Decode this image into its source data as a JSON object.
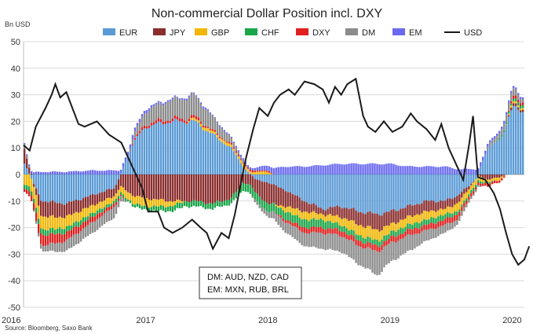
{
  "chart_data": {
    "type": "bar",
    "stacked": true,
    "title": "Non-commercial Dollar Position incl. DXY",
    "ylabel": "Bn USD",
    "ylim": [
      -50,
      50
    ],
    "yticks": [
      "50",
      "40",
      "30",
      "20",
      "10",
      "0",
      "-10",
      "-20",
      "-30",
      "-40",
      "-50"
    ],
    "xticks": [
      "2016",
      "2017",
      "2018",
      "2019",
      "2020"
    ],
    "grid": true,
    "legend_position": "top",
    "source": "Source: Bloomberg, Saxo Bank",
    "annotation_lines": [
      "DM: AUD, NZD, CAD",
      "EM: MXN, RUB, BRL"
    ],
    "series": [
      {
        "name": "EUR",
        "color": "#5b9bd5",
        "anchors": [
          [
            2016.0,
            5
          ],
          [
            2016.15,
            -10
          ],
          [
            2016.35,
            -11
          ],
          [
            2016.55,
            -8
          ],
          [
            2016.75,
            -5
          ],
          [
            2016.9,
            12
          ],
          [
            2017.0,
            18
          ],
          [
            2017.2,
            20
          ],
          [
            2017.4,
            20
          ],
          [
            2017.55,
            15
          ],
          [
            2017.7,
            10
          ],
          [
            2017.8,
            3
          ],
          [
            2017.9,
            -2
          ],
          [
            2018.0,
            -3
          ],
          [
            2018.15,
            -6
          ],
          [
            2018.3,
            -10
          ],
          [
            2018.45,
            -13
          ],
          [
            2018.6,
            -12
          ],
          [
            2018.75,
            -14
          ],
          [
            2018.9,
            -15
          ],
          [
            2019.0,
            -14
          ],
          [
            2019.15,
            -12
          ],
          [
            2019.3,
            -10
          ],
          [
            2019.45,
            -10
          ],
          [
            2019.55,
            -8
          ],
          [
            2019.65,
            -4
          ],
          [
            2019.7,
            -2
          ],
          [
            2019.8,
            10
          ],
          [
            2019.9,
            13
          ],
          [
            2020.0,
            25
          ],
          [
            2020.1,
            24
          ]
        ]
      },
      {
        "name": "JPY",
        "color": "#8b2e2e",
        "anchors": [
          [
            2016.0,
            6
          ],
          [
            2016.15,
            -6
          ],
          [
            2016.35,
            -5
          ],
          [
            2016.55,
            -4
          ],
          [
            2016.75,
            -3
          ],
          [
            2016.9,
            -8
          ],
          [
            2017.0,
            -9
          ],
          [
            2017.2,
            -10
          ],
          [
            2017.4,
            -10
          ],
          [
            2017.55,
            -11
          ],
          [
            2017.7,
            -9
          ],
          [
            2017.8,
            -3
          ],
          [
            2017.9,
            -5
          ],
          [
            2018.0,
            -8
          ],
          [
            2018.15,
            -6
          ],
          [
            2018.3,
            -4
          ],
          [
            2018.45,
            -2
          ],
          [
            2018.6,
            -4
          ],
          [
            2018.75,
            -5
          ],
          [
            2018.9,
            -6
          ],
          [
            2019.0,
            -5
          ],
          [
            2019.15,
            -4
          ],
          [
            2019.3,
            -4
          ],
          [
            2019.45,
            -3
          ],
          [
            2019.55,
            -3
          ],
          [
            2019.65,
            -1
          ],
          [
            2019.7,
            0
          ],
          [
            2019.8,
            -2
          ],
          [
            2019.9,
            -1
          ],
          [
            2020.0,
            1
          ],
          [
            2020.1,
            1
          ]
        ]
      },
      {
        "name": "GBP",
        "color": "#f2b705",
        "anchors": [
          [
            2016.0,
            -4
          ],
          [
            2016.15,
            -5
          ],
          [
            2016.35,
            -4
          ],
          [
            2016.55,
            -3
          ],
          [
            2016.75,
            -2
          ],
          [
            2016.9,
            -3
          ],
          [
            2017.0,
            -3
          ],
          [
            2017.2,
            -2
          ],
          [
            2017.4,
            1
          ],
          [
            2017.55,
            1
          ],
          [
            2017.7,
            1
          ],
          [
            2017.8,
            1
          ],
          [
            2017.9,
            1
          ],
          [
            2018.0,
            1
          ],
          [
            2018.15,
            -2
          ],
          [
            2018.3,
            -3
          ],
          [
            2018.45,
            -2
          ],
          [
            2018.6,
            -3
          ],
          [
            2018.75,
            -4
          ],
          [
            2018.9,
            -4
          ],
          [
            2019.0,
            -3
          ],
          [
            2019.15,
            -3
          ],
          [
            2019.3,
            -3
          ],
          [
            2019.45,
            -2
          ],
          [
            2019.55,
            -3
          ],
          [
            2019.65,
            -2
          ],
          [
            2019.7,
            -2
          ],
          [
            2019.8,
            -1
          ],
          [
            2019.9,
            -1
          ],
          [
            2020.0,
            1
          ],
          [
            2020.1,
            0.5
          ]
        ]
      },
      {
        "name": "CHF",
        "color": "#1aa64a",
        "anchors": [
          [
            2016.0,
            -1.5
          ],
          [
            2016.15,
            -2
          ],
          [
            2016.35,
            -2
          ],
          [
            2016.55,
            -1.5
          ],
          [
            2016.75,
            -1
          ],
          [
            2016.9,
            -1
          ],
          [
            2017.0,
            -1.5
          ],
          [
            2017.2,
            -2
          ],
          [
            2017.4,
            -2
          ],
          [
            2017.55,
            -2
          ],
          [
            2017.7,
            -2
          ],
          [
            2017.8,
            -3
          ],
          [
            2017.9,
            -3
          ],
          [
            2018.0,
            -3
          ],
          [
            2018.15,
            -3
          ],
          [
            2018.3,
            -3
          ],
          [
            2018.45,
            -3
          ],
          [
            2018.6,
            -2
          ],
          [
            2018.75,
            -2
          ],
          [
            2018.9,
            -2
          ],
          [
            2019.0,
            -2
          ],
          [
            2019.15,
            -2
          ],
          [
            2019.3,
            -2
          ],
          [
            2019.45,
            -2
          ],
          [
            2019.55,
            -1
          ],
          [
            2019.65,
            -1
          ],
          [
            2019.7,
            -1
          ],
          [
            2019.8,
            -0.5
          ],
          [
            2019.9,
            0.5
          ],
          [
            2020.0,
            1
          ],
          [
            2020.1,
            1
          ]
        ]
      },
      {
        "name": "DXY",
        "color": "#e11f1f",
        "anchors": [
          [
            2016.0,
            -1
          ],
          [
            2016.15,
            -4
          ],
          [
            2016.35,
            -3
          ],
          [
            2016.55,
            -2
          ],
          [
            2016.75,
            -1
          ],
          [
            2016.9,
            0.5
          ],
          [
            2017.0,
            1
          ],
          [
            2017.2,
            1
          ],
          [
            2017.4,
            1
          ],
          [
            2017.55,
            0.5
          ],
          [
            2017.7,
            0.5
          ],
          [
            2017.8,
            0.5
          ],
          [
            2017.9,
            0.5
          ],
          [
            2018.0,
            0.5
          ],
          [
            2018.15,
            -1
          ],
          [
            2018.3,
            -2
          ],
          [
            2018.45,
            -2
          ],
          [
            2018.6,
            -2
          ],
          [
            2018.75,
            -2
          ],
          [
            2018.9,
            -2
          ],
          [
            2019.0,
            -2
          ],
          [
            2019.15,
            -2
          ],
          [
            2019.3,
            -2
          ],
          [
            2019.45,
            -2
          ],
          [
            2019.55,
            -2
          ],
          [
            2019.65,
            -1
          ],
          [
            2019.7,
            -1
          ],
          [
            2019.8,
            -1
          ],
          [
            2019.9,
            -1
          ],
          [
            2020.0,
            1
          ],
          [
            2020.1,
            1
          ]
        ]
      },
      {
        "name": "DM",
        "color": "#8c8c8c",
        "anchors": [
          [
            2016.0,
            2
          ],
          [
            2016.15,
            -2
          ],
          [
            2016.35,
            -4
          ],
          [
            2016.55,
            -4
          ],
          [
            2016.75,
            -4
          ],
          [
            2016.9,
            2
          ],
          [
            2017.0,
            5
          ],
          [
            2017.2,
            7
          ],
          [
            2017.4,
            8
          ],
          [
            2017.55,
            5
          ],
          [
            2017.7,
            2
          ],
          [
            2017.8,
            0.5
          ],
          [
            2017.9,
            -1
          ],
          [
            2018.0,
            -2
          ],
          [
            2018.15,
            -4
          ],
          [
            2018.3,
            -5
          ],
          [
            2018.45,
            -6
          ],
          [
            2018.6,
            -6
          ],
          [
            2018.75,
            -7
          ],
          [
            2018.9,
            -9
          ],
          [
            2019.0,
            -7
          ],
          [
            2019.15,
            -6
          ],
          [
            2019.3,
            -4
          ],
          [
            2019.45,
            -3
          ],
          [
            2019.55,
            -2
          ],
          [
            2019.65,
            -1
          ],
          [
            2019.7,
            -1
          ],
          [
            2019.8,
            1
          ],
          [
            2019.9,
            2
          ],
          [
            2020.0,
            3
          ],
          [
            2020.1,
            1
          ]
        ]
      },
      {
        "name": "EM",
        "color": "#6a6af0",
        "anchors": [
          [
            2016.0,
            0.5
          ],
          [
            2016.15,
            1
          ],
          [
            2016.35,
            1
          ],
          [
            2016.55,
            1.5
          ],
          [
            2016.75,
            1.5
          ],
          [
            2016.9,
            1.5
          ],
          [
            2017.0,
            1
          ],
          [
            2017.2,
            0.5
          ],
          [
            2017.4,
            0.5
          ],
          [
            2017.55,
            0.5
          ],
          [
            2017.7,
            0.5
          ],
          [
            2017.8,
            1
          ],
          [
            2017.9,
            1
          ],
          [
            2018.0,
            2
          ],
          [
            2018.15,
            3
          ],
          [
            2018.3,
            3
          ],
          [
            2018.45,
            3.5
          ],
          [
            2018.6,
            4
          ],
          [
            2018.75,
            4
          ],
          [
            2018.9,
            4
          ],
          [
            2019.0,
            4
          ],
          [
            2019.15,
            3
          ],
          [
            2019.3,
            3
          ],
          [
            2019.45,
            3
          ],
          [
            2019.55,
            2
          ],
          [
            2019.65,
            2
          ],
          [
            2019.7,
            2
          ],
          [
            2019.8,
            1
          ],
          [
            2019.9,
            1
          ],
          [
            2020.0,
            1
          ],
          [
            2020.1,
            0.5
          ]
        ]
      }
    ],
    "line": {
      "name": "USD",
      "color": "#1a1a1a",
      "anchors": [
        [
          2016.0,
          11
        ],
        [
          2016.05,
          9
        ],
        [
          2016.1,
          18
        ],
        [
          2016.18,
          25
        ],
        [
          2016.23,
          30
        ],
        [
          2016.26,
          34
        ],
        [
          2016.3,
          29
        ],
        [
          2016.35,
          31
        ],
        [
          2016.4,
          25
        ],
        [
          2016.45,
          19
        ],
        [
          2016.5,
          18
        ],
        [
          2016.6,
          20
        ],
        [
          2016.7,
          15
        ],
        [
          2016.8,
          12
        ],
        [
          2016.9,
          2
        ],
        [
          2016.97,
          -5
        ],
        [
          2017.02,
          -14
        ],
        [
          2017.1,
          -14
        ],
        [
          2017.15,
          -20
        ],
        [
          2017.22,
          -22
        ],
        [
          2017.3,
          -20
        ],
        [
          2017.38,
          -17
        ],
        [
          2017.45,
          -20
        ],
        [
          2017.5,
          -22
        ],
        [
          2017.55,
          -28
        ],
        [
          2017.62,
          -22
        ],
        [
          2017.68,
          -24
        ],
        [
          2017.73,
          -15
        ],
        [
          2017.78,
          -3
        ],
        [
          2017.82,
          6
        ],
        [
          2017.88,
          17
        ],
        [
          2017.93,
          25
        ],
        [
          2018.0,
          22
        ],
        [
          2018.05,
          27
        ],
        [
          2018.1,
          30
        ],
        [
          2018.17,
          32
        ],
        [
          2018.22,
          30
        ],
        [
          2018.3,
          35
        ],
        [
          2018.38,
          34
        ],
        [
          2018.45,
          32
        ],
        [
          2018.5,
          27
        ],
        [
          2018.55,
          33
        ],
        [
          2018.6,
          30
        ],
        [
          2018.65,
          34
        ],
        [
          2018.72,
          36
        ],
        [
          2018.78,
          22
        ],
        [
          2018.82,
          18
        ],
        [
          2018.88,
          16
        ],
        [
          2018.95,
          20
        ],
        [
          2019.02,
          16
        ],
        [
          2019.1,
          18
        ],
        [
          2019.17,
          23
        ],
        [
          2019.22,
          20
        ],
        [
          2019.3,
          17
        ],
        [
          2019.37,
          13
        ],
        [
          2019.42,
          19
        ],
        [
          2019.48,
          10
        ],
        [
          2019.55,
          3
        ],
        [
          2019.6,
          -2
        ],
        [
          2019.65,
          12
        ],
        [
          2019.68,
          22
        ],
        [
          2019.72,
          -1
        ],
        [
          2019.78,
          -2
        ],
        [
          2019.85,
          -7
        ],
        [
          2019.9,
          -13
        ],
        [
          2019.95,
          -22
        ],
        [
          2020.0,
          -30
        ],
        [
          2020.05,
          -34
        ],
        [
          2020.1,
          -32
        ],
        [
          2020.14,
          -27
        ]
      ]
    }
  }
}
